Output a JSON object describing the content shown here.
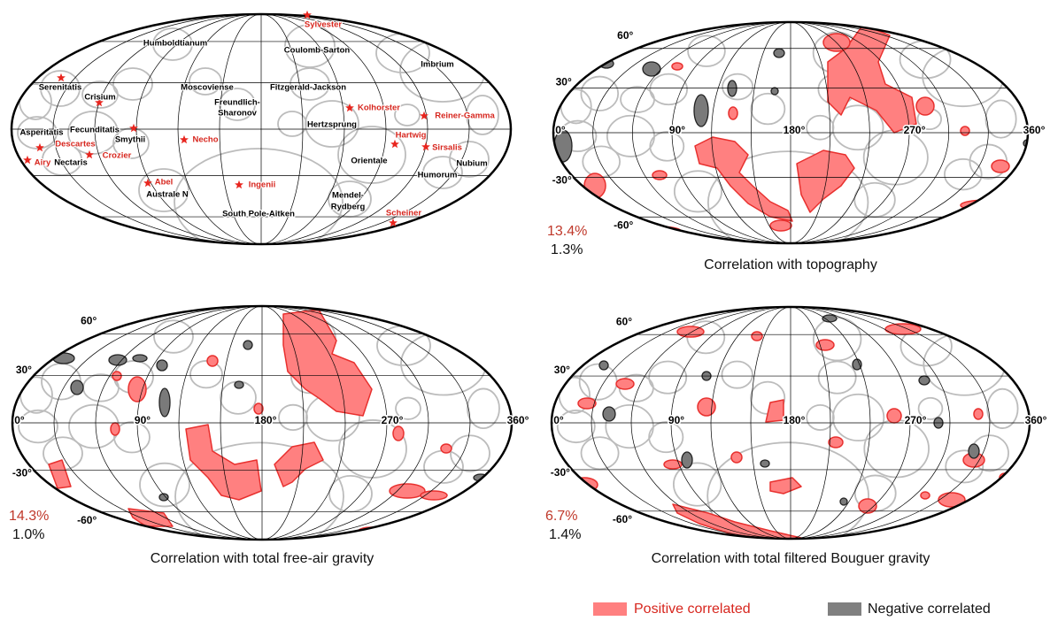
{
  "basin_map": {
    "basins": [
      "Humboldtianum",
      "Coulomb-Sarton",
      "Imbrium",
      "Serenitatis",
      "Crisium",
      "Moscoviense",
      "Fitzgerald-Jackson",
      [
        "Freundlich-",
        "Sharonov"
      ],
      "Hertzsprung",
      "Asperitatis",
      "Fecunditatis",
      "Smythii",
      "Nectaris",
      "Orientale",
      "Nubium",
      "Humorum",
      "Australe N",
      [
        "Mendel-",
        "Rydberg"
      ],
      "South Pole-Aitken"
    ],
    "sites": [
      "Sylvester",
      "Kolhorster",
      "Reiner-Gamma",
      "Hartwig",
      "Sirsalis",
      "Descartes",
      "Airy",
      "Crozier",
      "Necho",
      "Abel",
      "Ingenii",
      "Scheiner"
    ]
  },
  "panels": [
    {
      "caption": "Correlation with topography",
      "positive_pct": "13.4%",
      "negative_pct": "1.3%"
    },
    {
      "caption": "Correlation with total free-air gravity",
      "positive_pct": "14.3%",
      "negative_pct": "1.0%"
    },
    {
      "caption": "Correlation with total filtered Bouguer gravity",
      "positive_pct": "6.7%",
      "negative_pct": "1.4%"
    }
  ],
  "lon_labels": [
    "0°",
    "90°",
    "180°",
    "270°",
    "360°"
  ],
  "lat_labels": [
    "60°",
    "30°",
    "-30°",
    "-60°"
  ],
  "legend": {
    "positive": "Positive correlated",
    "negative": "Negative correlated"
  }
}
